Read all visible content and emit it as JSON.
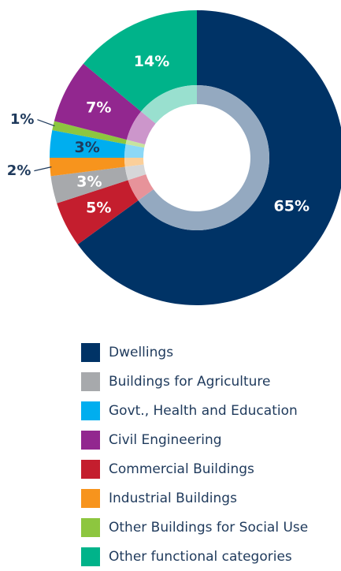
{
  "chart_data": {
    "type": "pie",
    "title": "",
    "legend_position": "bottom",
    "slices": [
      {
        "name": "Dwellings",
        "value": 65,
        "label": "65%",
        "color": "#003366",
        "inner_color": "#94a9c0",
        "label_color": "#ffffff"
      },
      {
        "name": "Commercial Buildings",
        "value": 5,
        "label": "5%",
        "color": "#c41e2e",
        "inner_color": "#e7939a",
        "label_color": "#ffffff"
      },
      {
        "name": "Buildings for Agriculture",
        "value": 3,
        "label": "3%",
        "color": "#a7a9ac",
        "inner_color": "#d6d7d8",
        "label_color": "#ffffff"
      },
      {
        "name": "Industrial Buildings",
        "value": 2,
        "label": "2%",
        "color": "#f7941d",
        "inner_color": "#fbcf99",
        "label_color": "#1f3a5c"
      },
      {
        "name": "Govt., Health and Education",
        "value": 3,
        "label": "3%",
        "color": "#00aeef",
        "inner_color": "#8cd8f6",
        "label_color": "#1f3a5c"
      },
      {
        "name": "Other Buildings for Social Use",
        "value": 1,
        "label": "1%",
        "color": "#8dc63f",
        "inner_color": "#c7e3a0",
        "label_color": "#1f3a5c"
      },
      {
        "name": "Civil Engineering",
        "value": 7,
        "label": "7%",
        "color": "#92278f",
        "inner_color": "#cc96cb",
        "label_color": "#ffffff"
      },
      {
        "name": "Other functional categories",
        "value": 14,
        "label": "14%",
        "color": "#00b38a",
        "inner_color": "#99e0cf",
        "label_color": "#ffffff"
      }
    ]
  },
  "legend": [
    {
      "label": "Dwellings",
      "color": "#003366"
    },
    {
      "label": "Buildings for Agriculture",
      "color": "#a7a9ac"
    },
    {
      "label": "Govt., Health and Education",
      "color": "#00aeef"
    },
    {
      "label": "Civil Engineering",
      "color": "#92278f"
    },
    {
      "label": "Commercial Buildings",
      "color": "#c41e2e"
    },
    {
      "label": "Industrial Buildings",
      "color": "#f7941d"
    },
    {
      "label": "Other Buildings for Social Use",
      "color": "#8dc63f"
    },
    {
      "label": "Other functional categories",
      "color": "#00b38a"
    }
  ]
}
